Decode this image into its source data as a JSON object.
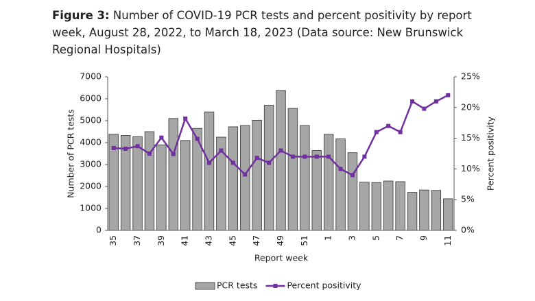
{
  "chart_data": {
    "type": "bar-line",
    "title_label": "Figure 3:",
    "title": "Number of COVID-19 PCR tests and percent positivity by report week, August 28, 2022, to March 18, 2023 (Data source: New Brunswick Regional Hospitals)",
    "xlabel": "Report week",
    "ylabel": "Number of PCR tests",
    "y2label": "Percent positivity",
    "categories": [
      "35",
      null,
      "37",
      null,
      "39",
      null,
      "41",
      null,
      "43",
      null,
      "45",
      null,
      "47",
      null,
      "49",
      null,
      "51",
      null,
      "1",
      null,
      "3",
      null,
      "5",
      null,
      "7",
      null,
      "9",
      null,
      "11"
    ],
    "series": [
      {
        "name": "PCR tests",
        "type": "bar",
        "color": "#a6a6a6",
        "values": [
          4380,
          4330,
          4270,
          4500,
          3900,
          5100,
          4100,
          4650,
          5400,
          4250,
          4720,
          4780,
          5020,
          5700,
          6380,
          5560,
          4780,
          3640,
          4380,
          4170,
          3540,
          2200,
          2180,
          2250,
          2220,
          1730,
          1840,
          1820,
          1440
        ]
      },
      {
        "name": "Percent positivity",
        "type": "line",
        "axis": "y2",
        "color": "#7030a0",
        "values": [
          13.4,
          13.3,
          13.7,
          12.5,
          15.1,
          12.4,
          18.2,
          14.9,
          11.0,
          13.0,
          11.0,
          9.1,
          11.8,
          11.0,
          13.0,
          12.0,
          12.0,
          12.0,
          12.0,
          10.0,
          9.0,
          12.0,
          16.0,
          17.0,
          16.0,
          21.0,
          19.8,
          21.0,
          22.0
        ]
      }
    ],
    "ylim": [
      0,
      7000
    ],
    "yticks": [
      0,
      1000,
      2000,
      3000,
      4000,
      5000,
      6000,
      7000
    ],
    "y2lim": [
      0,
      25
    ],
    "y2ticks": [
      {
        "value": 0,
        "label": "0%"
      },
      {
        "value": 5,
        "label": "5%"
      },
      {
        "value": 10,
        "label": "10%"
      },
      {
        "value": 15,
        "label": "15%"
      },
      {
        "value": 20,
        "label": "20%"
      },
      {
        "value": 25,
        "label": "25%"
      }
    ],
    "legend": "bottom"
  }
}
